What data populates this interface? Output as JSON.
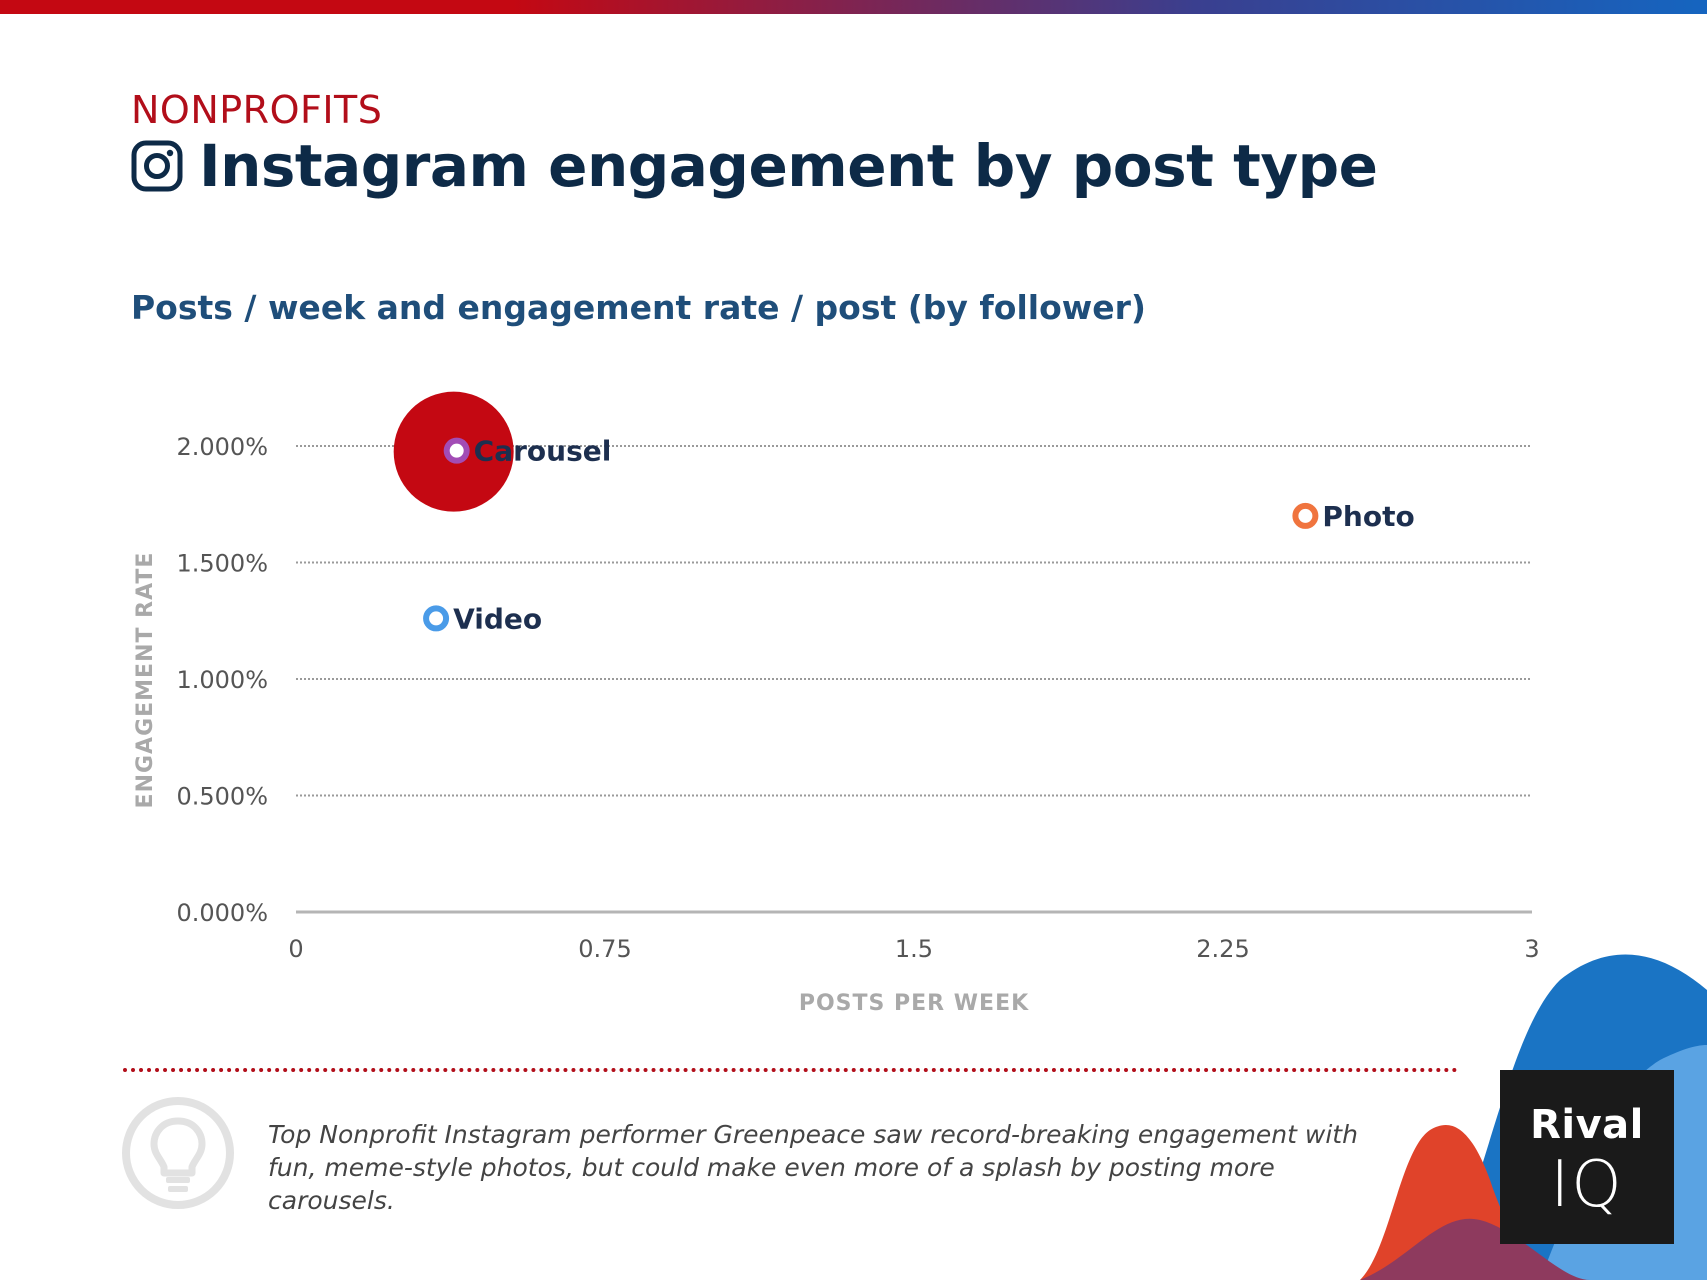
{
  "header": {
    "category": "NONPROFITS",
    "title": "Instagram engagement by post type",
    "subtitle": "Posts / week and engagement rate / post (by follower)"
  },
  "colors": {
    "category": "#b20e1a",
    "title": "#0d2a47",
    "subtitle": "#1f4e7a",
    "carousel_bubble": "#c40812",
    "carousel_marker": "#a24cb5",
    "photo_marker": "#f0743e",
    "video_marker": "#4a9be8",
    "label": "#1d2f4f"
  },
  "icons": {
    "title_icon": "instagram-icon",
    "insight_icon": "lightbulb-icon"
  },
  "chart_data": {
    "type": "scatter",
    "title": "Posts / week and engagement rate / post (by follower)",
    "xlabel": "POSTS PER WEEK",
    "ylabel": "ENGAGEMENT RATE",
    "xlim": [
      0,
      3
    ],
    "ylim": [
      0,
      2.0
    ],
    "x_ticks": [
      "0",
      "0.75",
      "1.5",
      "2.25",
      "3"
    ],
    "x_tick_values": [
      0,
      0.75,
      1.5,
      2.25,
      3
    ],
    "y_ticks": [
      "0.000%",
      "0.500%",
      "1.000%",
      "1.500%",
      "2.000%"
    ],
    "y_tick_values": [
      0,
      0.5,
      1.0,
      1.5,
      2.0
    ],
    "grid": true,
    "series": [
      {
        "name": "Carousel",
        "x": 0.39,
        "y": 1.98,
        "color": "#a24cb5",
        "highlight": true
      },
      {
        "name": "Photo",
        "x": 2.45,
        "y": 1.7,
        "color": "#f0743e",
        "highlight": false
      },
      {
        "name": "Video",
        "x": 0.34,
        "y": 1.26,
        "color": "#4a9be8",
        "highlight": false
      }
    ]
  },
  "insight": {
    "text": "Top Nonprofit Instagram performer Greenpeace saw record-breaking engagement with fun, meme-style photos, but could make even more of a splash by posting more carousels."
  },
  "logo": {
    "line1": "Rival",
    "line2": "IQ"
  }
}
